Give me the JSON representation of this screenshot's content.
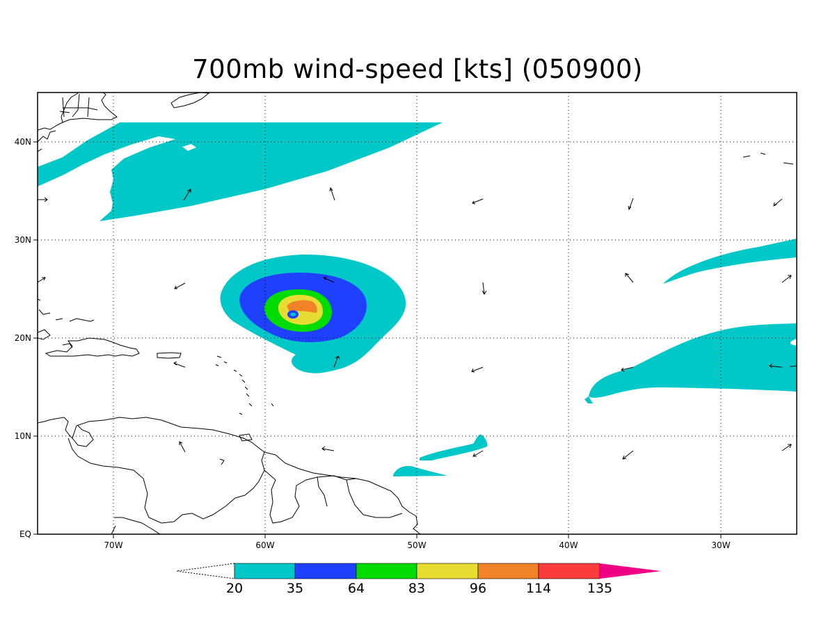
{
  "title": "700mb wind-speed [kts] (050900)",
  "axes": {
    "x_ticks": [
      "70W",
      "60W",
      "50W",
      "40W",
      "30W"
    ],
    "y_ticks": [
      "EQ",
      "10N",
      "20N",
      "30N",
      "40N"
    ],
    "lon_range": [
      -75,
      -25
    ],
    "lat_range": [
      0,
      45
    ]
  },
  "colorbar": {
    "levels": [
      "20",
      "35",
      "64",
      "83",
      "96",
      "114",
      "135"
    ],
    "colors": [
      "#00c8c8",
      "#2040ff",
      "#00dc00",
      "#e6dc32",
      "#f08228",
      "#fa3c3c",
      "#f00082"
    ],
    "below_min": "white"
  },
  "map": {
    "shading": [
      {
        "name": "northwest-jet-band",
        "level": "20-35"
      },
      {
        "name": "hurricane-circulation",
        "levels": [
          "20-35",
          "35-64",
          "64-83",
          "83-96",
          "96-114"
        ]
      },
      {
        "name": "east-jet-upper",
        "level": "20-35"
      },
      {
        "name": "east-jet-lower",
        "level": "20-35"
      },
      {
        "name": "tropical-patch-south",
        "level": "20-35"
      }
    ]
  }
}
